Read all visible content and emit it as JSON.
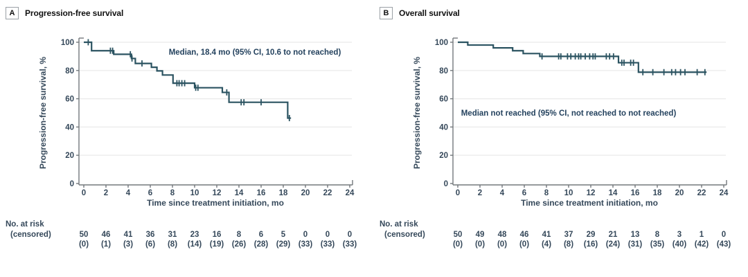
{
  "figure": {
    "risk_header": "No. at risk",
    "risk_header2": "(censored)"
  },
  "chart_data": [
    {
      "type": "line",
      "subtype": "kaplan-meier-step",
      "panel_label": "A",
      "title": "Progression-free survival",
      "annotation": "Median, 18.4 mo (95% CI, 10.6 to not reached)",
      "xlabel": "Time since treatment initiation, mo",
      "ylabel": "Progression-free survival, %",
      "xlim": [
        0,
        24
      ],
      "ylim": [
        0,
        100
      ],
      "xticks": [
        0,
        2,
        4,
        6,
        8,
        10,
        12,
        14,
        16,
        18,
        20,
        22,
        24
      ],
      "yticks": [
        0,
        20,
        40,
        60,
        80,
        100
      ],
      "grid": "horizontal-light",
      "line_color": "#2b5361",
      "steps": [
        [
          0,
          100
        ],
        [
          0.7,
          94
        ],
        [
          2.7,
          91.5
        ],
        [
          4.3,
          88.5
        ],
        [
          4.65,
          85
        ],
        [
          6.1,
          82.3
        ],
        [
          6.6,
          79.7
        ],
        [
          7.1,
          76.8
        ],
        [
          8.05,
          71
        ],
        [
          10.0,
          67.8
        ],
        [
          12.5,
          64.5
        ],
        [
          13.1,
          57.5
        ],
        [
          18.4,
          46.3
        ]
      ],
      "curve_end": 18.7,
      "censor_marks": [
        [
          0.4,
          100
        ],
        [
          2.4,
          94
        ],
        [
          2.6,
          94
        ],
        [
          4.2,
          91.5
        ],
        [
          4.35,
          88.5
        ],
        [
          5.25,
          85
        ],
        [
          8.4,
          71
        ],
        [
          8.6,
          71
        ],
        [
          8.85,
          71
        ],
        [
          9.1,
          71
        ],
        [
          10.1,
          67.8
        ],
        [
          10.3,
          67.8
        ],
        [
          12.9,
          64.5
        ],
        [
          14.2,
          57.5
        ],
        [
          14.45,
          57.5
        ],
        [
          16.0,
          57.5
        ],
        [
          18.55,
          46.3
        ]
      ],
      "risk_label": "No. at risk",
      "risk_label2": "(censored)",
      "at_risk": [
        "50",
        "46",
        "41",
        "36",
        "31",
        "23",
        "16",
        "8",
        "6",
        "5",
        "0",
        "0",
        "0"
      ],
      "censored": [
        "(0)",
        "(1)",
        "(3)",
        "(6)",
        "(8)",
        "(14)",
        "(19)",
        "(26)",
        "(28)",
        "(29)",
        "(33)",
        "(33)",
        "(33)"
      ]
    },
    {
      "type": "line",
      "subtype": "kaplan-meier-step",
      "panel_label": "B",
      "title": "Overall survival",
      "annotation": "Median not reached (95% CI, not reached to not reached)",
      "xlabel": "Time since treatment initiation, mo",
      "ylabel": "Progression-free survival, %",
      "xlim": [
        0,
        24
      ],
      "ylim": [
        0,
        100
      ],
      "xticks": [
        0,
        2,
        4,
        6,
        8,
        10,
        12,
        14,
        16,
        18,
        20,
        22,
        24
      ],
      "yticks": [
        0,
        20,
        40,
        60,
        80,
        100
      ],
      "grid": "horizontal-light",
      "line_color": "#2b5361",
      "steps": [
        [
          0,
          100
        ],
        [
          0.9,
          98
        ],
        [
          3.2,
          96
        ],
        [
          4.95,
          94
        ],
        [
          5.9,
          92
        ],
        [
          7.4,
          90
        ],
        [
          14.5,
          85.5
        ],
        [
          16.3,
          78.8
        ]
      ],
      "curve_end": 22.45,
      "censor_marks": [
        [
          7.6,
          90
        ],
        [
          9.1,
          90
        ],
        [
          9.3,
          90
        ],
        [
          9.9,
          90
        ],
        [
          10.2,
          90
        ],
        [
          10.6,
          90
        ],
        [
          10.9,
          90
        ],
        [
          11.1,
          90
        ],
        [
          11.5,
          90
        ],
        [
          11.9,
          90
        ],
        [
          12.2,
          90
        ],
        [
          12.4,
          90
        ],
        [
          13.4,
          90
        ],
        [
          13.7,
          90
        ],
        [
          14.05,
          90
        ],
        [
          14.8,
          85.5
        ],
        [
          15.0,
          85.5
        ],
        [
          15.6,
          85.5
        ],
        [
          15.85,
          85.5
        ],
        [
          16.7,
          78.8
        ],
        [
          17.6,
          78.8
        ],
        [
          18.6,
          78.8
        ],
        [
          19.3,
          78.8
        ],
        [
          19.65,
          78.8
        ],
        [
          20.1,
          78.8
        ],
        [
          20.5,
          78.8
        ],
        [
          21.6,
          78.8
        ],
        [
          22.3,
          78.8
        ]
      ],
      "risk_label": "No. at risk",
      "risk_label2": "(censored)",
      "at_risk": [
        "50",
        "49",
        "48",
        "46",
        "41",
        "37",
        "29",
        "21",
        "13",
        "8",
        "3",
        "1",
        "0"
      ],
      "censored": [
        "(0)",
        "(0)",
        "(0)",
        "(0)",
        "(4)",
        "(8)",
        "(16)",
        "(24)",
        "(31)",
        "(35)",
        "(40)",
        "(42)",
        "(43)"
      ]
    }
  ],
  "style": {
    "curve_color": "#2b5361",
    "grid_color": "#e9e9e9",
    "axis_color": "#73787c",
    "label_color": "#35485a",
    "title_color": "#111111",
    "annotation_color": "#24425e"
  }
}
